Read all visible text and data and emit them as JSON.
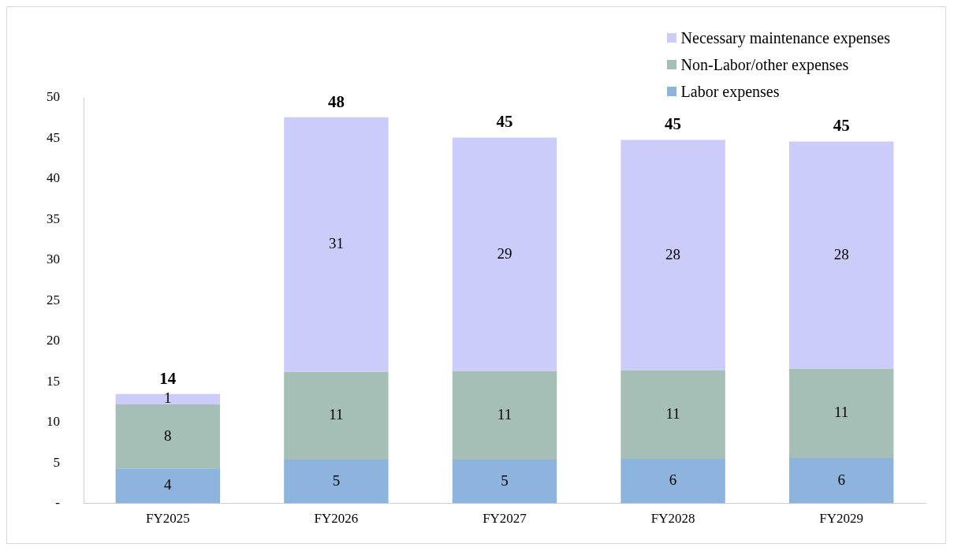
{
  "chart_data": {
    "type": "bar",
    "stacked": true,
    "categories": [
      "FY2025",
      "FY2026",
      "FY2027",
      "FY2028",
      "FY2029"
    ],
    "series": [
      {
        "name": "Labor expenses",
        "color": "#8db4dc",
        "values": [
          4.3,
          5.4,
          5.4,
          5.5,
          5.6
        ],
        "value_labels": [
          "4",
          "5",
          "5",
          "6",
          "6"
        ]
      },
      {
        "name": "Non-Labor/other expenses",
        "color": "#a5bfb7",
        "values": [
          7.9,
          10.8,
          10.9,
          10.9,
          11.0
        ],
        "value_labels": [
          "8",
          "11",
          "11",
          "11",
          "11"
        ]
      },
      {
        "name": "Necessary maintenance expenses",
        "color": "#ccccfb",
        "values": [
          1.3,
          31.4,
          28.8,
          28.4,
          28.0
        ],
        "value_labels": [
          "1",
          "31",
          "29",
          "28",
          "28"
        ]
      }
    ],
    "totals": [
      "14",
      "48",
      "45",
      "45",
      "45"
    ],
    "ylim": [
      0,
      50
    ],
    "yticks": [
      {
        "value": 0,
        "label": "-"
      },
      5,
      10,
      15,
      20,
      25,
      30,
      35,
      40,
      45,
      50
    ],
    "grid": false,
    "legend": "top right"
  }
}
